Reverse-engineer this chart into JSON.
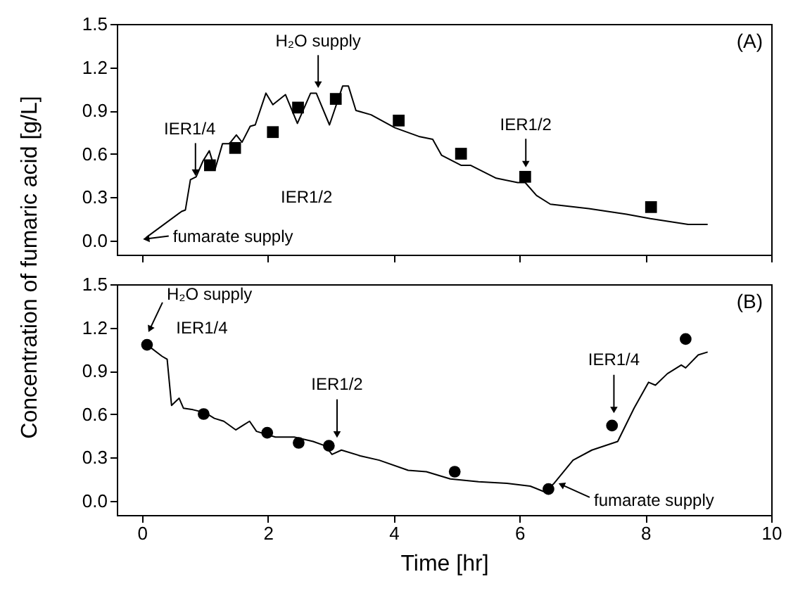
{
  "chart_data": [
    {
      "type": "line",
      "ylabel": "Concentration of fumaric acid [g/L]",
      "xlim": [
        -0.4,
        10
      ],
      "ylim": [
        -0.1,
        1.5
      ],
      "xticks": [
        0,
        2,
        4,
        6,
        8,
        10
      ],
      "yticks": [
        {
          "value": 0,
          "label": "0.0"
        },
        {
          "value": 0.3,
          "label": "0.3"
        },
        {
          "value": 0.6,
          "label": "0.6"
        },
        {
          "value": 0.9,
          "label": "0.9"
        },
        {
          "value": 1.2,
          "label": "1.2"
        },
        {
          "value": 1.5,
          "label": "1.5"
        }
      ],
      "tick_labels": "y",
      "grid": false,
      "series": [
        {
          "color": "#000000",
          "marker": "none",
          "x": [
            0.07,
            0.63,
            0.69,
            0.77,
            0.86,
            0.97,
            1.07,
            1.16,
            1.28,
            1.39,
            1.5,
            1.59,
            1.72,
            1.8,
            1.97,
            2.08,
            2.28,
            2.47,
            2.68,
            2.77,
            2.98,
            3.19,
            3.28,
            3.4,
            3.64,
            4.02,
            4.4,
            4.62,
            4.76,
            5.07,
            5.22,
            5.63,
            5.97,
            6.09,
            6.27,
            6.49,
            7.1,
            7.7,
            8.08,
            8.68,
            8.99
          ],
          "values": [
            0.02,
            0.2,
            0.21,
            0.42,
            0.44,
            0.55,
            0.62,
            0.49,
            0.67,
            0.67,
            0.73,
            0.68,
            0.79,
            0.8,
            1.02,
            0.94,
            1.01,
            0.81,
            1.02,
            1.02,
            0.8,
            1.07,
            1.07,
            0.9,
            0.87,
            0.78,
            0.72,
            0.7,
            0.59,
            0.52,
            0.52,
            0.43,
            0.4,
            0.4,
            0.31,
            0.25,
            0.22,
            0.18,
            0.15,
            0.11,
            0.11
          ]
        },
        {
          "type": "scatter",
          "color": "#000000",
          "marker": "square",
          "x": [
            1.08,
            1.48,
            2.08,
            2.48,
            3.08,
            4.08,
            5.07,
            6.09,
            8.09
          ],
          "values": [
            0.52,
            0.64,
            0.75,
            0.92,
            0.98,
            0.83,
            0.6,
            0.44,
            0.23
          ]
        }
      ],
      "annotations": [
        {
          "text": "IER1/4",
          "x": 0.85,
          "y": 0.42
        },
        {
          "text": "H₂O supply",
          "x": 2.8,
          "y": 1.03
        },
        {
          "text": "IER1/2",
          "x": 6.1,
          "y": 0.45
        },
        "IER1/2",
        {
          "text": "fumarate supply",
          "x": 0,
          "y": 0
        },
        "(A)"
      ]
    },
    {
      "type": "line",
      "xlabel": "Time [hr]",
      "xlim": [
        -0.4,
        10
      ],
      "ylim": [
        -0.1,
        1.5
      ],
      "xticks": [
        0,
        2,
        4,
        6,
        8,
        10
      ],
      "yticks": [
        {
          "value": 0,
          "label": "0.0"
        },
        {
          "value": 0.3,
          "label": "0.3"
        },
        {
          "value": 0.6,
          "label": "0.6"
        },
        {
          "value": 0.9,
          "label": "0.9"
        },
        {
          "value": 1.2,
          "label": "1.2"
        },
        {
          "value": 1.5,
          "label": "1.5"
        }
      ],
      "grid": false,
      "series": [
        {
          "color": "#000000",
          "marker": "none",
          "x": [
            0.08,
            0.32,
            0.4,
            0.47,
            0.59,
            0.66,
            0.81,
            1.0,
            1.15,
            1.3,
            1.49,
            1.6,
            1.71,
            1.82,
            2.12,
            2.42,
            2.72,
            2.91,
            3.02,
            3.17,
            3.47,
            3.77,
            4.23,
            4.52,
            4.9,
            5.35,
            5.8,
            6.17,
            6.4,
            6.55,
            6.85,
            7.15,
            7.56,
            7.82,
            8.05,
            8.16,
            8.35,
            8.57,
            8.64,
            8.84,
            8.99
          ],
          "values": [
            1.08,
            1.0,
            0.98,
            0.66,
            0.71,
            0.64,
            0.63,
            0.61,
            0.57,
            0.55,
            0.49,
            0.52,
            0.55,
            0.48,
            0.44,
            0.44,
            0.41,
            0.38,
            0.32,
            0.35,
            0.31,
            0.28,
            0.21,
            0.2,
            0.15,
            0.13,
            0.12,
            0.1,
            0.06,
            0.12,
            0.28,
            0.35,
            0.41,
            0.64,
            0.82,
            0.8,
            0.88,
            0.94,
            0.92,
            1.01,
            1.03
          ]
        },
        {
          "type": "scatter",
          "color": "#000000",
          "marker": "circle",
          "x": [
            0.08,
            0.98,
            1.99,
            2.49,
            2.97,
            4.97,
            6.46,
            7.47,
            8.64
          ],
          "values": [
            1.08,
            0.6,
            0.47,
            0.4,
            0.38,
            0.2,
            0.08,
            0.52,
            1.12
          ]
        }
      ],
      "annotations": [
        {
          "text": "H₂O supply",
          "x": 0.08,
          "y": 1.12
        },
        "IER1/4",
        {
          "text": "IER1/2",
          "x": 3.1,
          "y": 0.38
        },
        {
          "text": "IER1/4",
          "x": 7.5,
          "y": 0.55
        },
        {
          "text": "fumarate supply",
          "x": 6.6,
          "y": 0.12
        },
        "(B)"
      ]
    }
  ]
}
